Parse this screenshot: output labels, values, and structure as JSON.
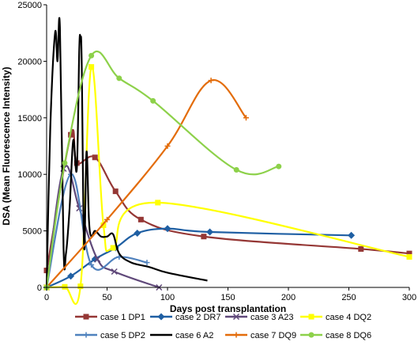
{
  "chart_data": {
    "type": "line",
    "title": "",
    "xlabel": "Days post transplantation",
    "ylabel": "DSA (Mean Fluorescence Intensity)",
    "xlim": [
      0,
      300
    ],
    "ylim": [
      0,
      25000
    ],
    "x_ticks": [
      0,
      50,
      100,
      150,
      200,
      250,
      300
    ],
    "y_ticks": [
      0,
      5000,
      10000,
      15000,
      20000,
      25000
    ],
    "grid": false,
    "legend_position": "bottom",
    "series": [
      {
        "name": "case 1 DP1",
        "color": "#953735",
        "marker": "square",
        "x": [
          0,
          20,
          25,
          40,
          57,
          78,
          130,
          260,
          300
        ],
        "y": [
          1500,
          13500,
          11000,
          11500,
          8500,
          6000,
          4500,
          3400,
          3000
        ]
      },
      {
        "name": "case 2 DR7",
        "color": "#1f5fa3",
        "marker": "diamond",
        "x": [
          0,
          20,
          40,
          57,
          75,
          100,
          135,
          252
        ],
        "y": [
          0,
          1000,
          2500,
          3500,
          4800,
          5200,
          4900,
          4600
        ]
      },
      {
        "name": "case 3 A23",
        "color": "#60497a",
        "marker": "x",
        "x": [
          0,
          14,
          27,
          42,
          56,
          93
        ],
        "y": [
          0,
          10500,
          7000,
          2500,
          1400,
          0
        ]
      },
      {
        "name": "case 4 DQ2",
        "color": "#ffff00",
        "marker": "square",
        "x": [
          0,
          15,
          28,
          37,
          47,
          55,
          92,
          300
        ],
        "y": [
          0,
          50,
          100,
          19500,
          5500,
          3500,
          7500,
          2700
        ]
      },
      {
        "name": "case 5 DP2",
        "color": "#4f81bd",
        "marker": "plus",
        "x": [
          0,
          20,
          37,
          60,
          83
        ],
        "y": [
          0,
          10000,
          2000,
          2700,
          2200
        ]
      },
      {
        "name": "case 6 A2",
        "color": "#000000",
        "marker": "none",
        "x": [
          0,
          3,
          7,
          9,
          11,
          14,
          16,
          19,
          22,
          25,
          27,
          28,
          29,
          31,
          33,
          35,
          37,
          40,
          45,
          50,
          55,
          60,
          70,
          85,
          100,
          133
        ],
        "y": [
          0,
          14000,
          22500,
          20000,
          23000,
          3500,
          3000,
          7000,
          13000,
          10500,
          21000,
          22000,
          20000,
          3500,
          12000,
          6000,
          4500,
          5000,
          4500,
          4500,
          4700,
          3000,
          2200,
          1800,
          1300,
          600
        ]
      },
      {
        "name": "case 7 DQ9",
        "color": "#e36c0a",
        "marker": "plus",
        "x": [
          0,
          50,
          100,
          136,
          165
        ],
        "y": [
          0,
          6000,
          12500,
          18300,
          15000
        ]
      },
      {
        "name": "case 8 DQ6",
        "color": "#8dd14a",
        "marker": "circle",
        "x": [
          0,
          15,
          37,
          60,
          88,
          157,
          192
        ],
        "y": [
          0,
          11000,
          20500,
          18500,
          16500,
          10400,
          10700
        ]
      }
    ]
  }
}
